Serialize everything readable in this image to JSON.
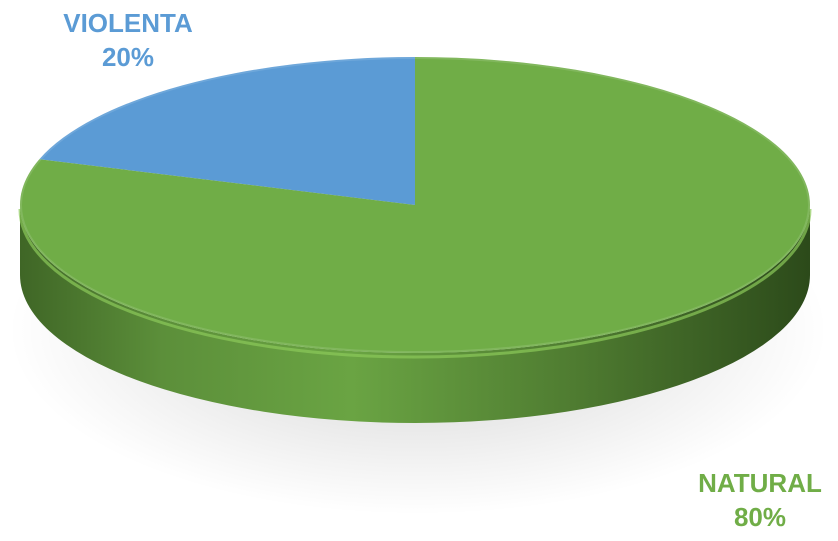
{
  "chart_data": {
    "type": "pie",
    "style": "3d",
    "slices": [
      {
        "label": "VIOLENTA",
        "value": 20,
        "percent_label": "20%",
        "color": "#5b9bd5"
      },
      {
        "label": "NATURAL",
        "value": 80,
        "percent_label": "80%",
        "color": "#70ad47"
      }
    ]
  }
}
